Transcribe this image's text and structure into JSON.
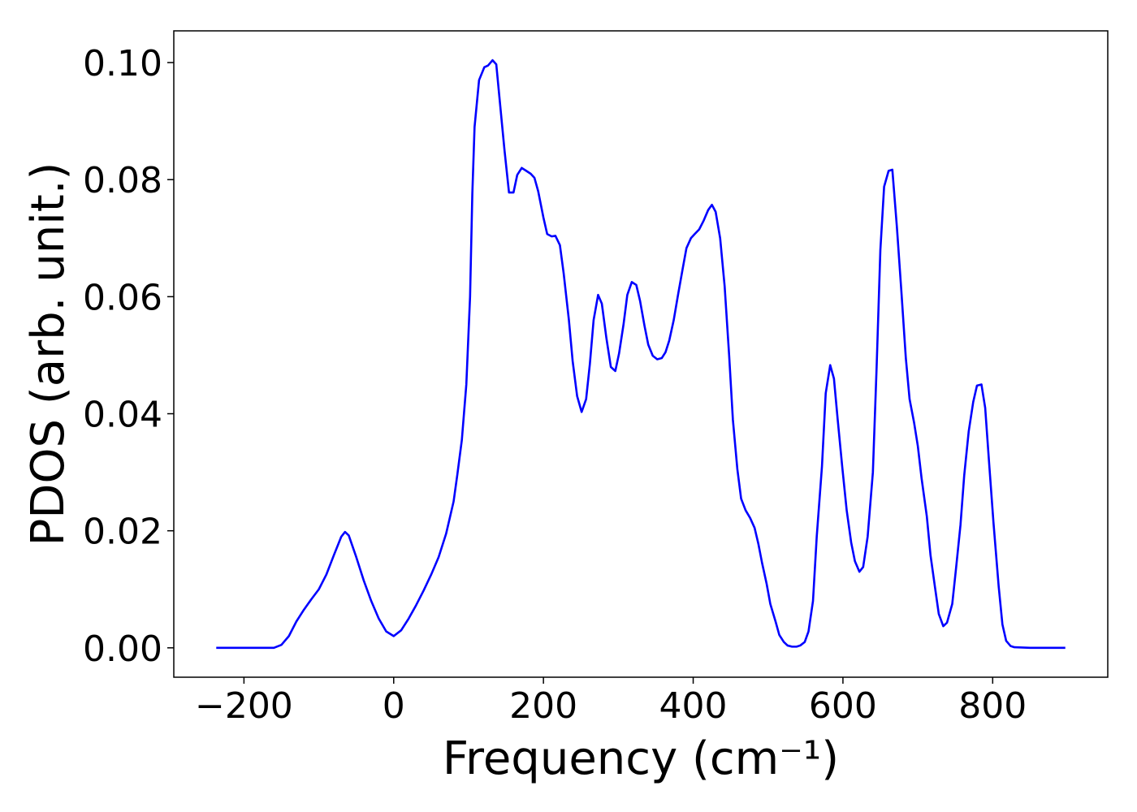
{
  "chart_data": {
    "type": "line",
    "xlabel": "Frequency (cm⁻¹)",
    "ylabel": "PDOS (arb. unit.)",
    "xlim": [
      -293.7,
      953.7
    ],
    "ylim": [
      -0.00502,
      0.10542
    ],
    "xticks": [
      {
        "value": -200,
        "label": "−200"
      },
      0,
      200,
      400,
      600,
      800
    ],
    "yticks": [
      {
        "value": 0,
        "label": "0.00"
      },
      {
        "value": 0.02,
        "label": "0.02"
      },
      {
        "value": 0.04,
        "label": "0.04"
      },
      {
        "value": 0.06,
        "label": "0.06"
      },
      {
        "value": 0.08,
        "label": "0.08"
      },
      {
        "value": 0.1,
        "label": "0.10"
      }
    ],
    "x": [
      -237,
      -200,
      -160,
      -150,
      -140,
      -130,
      -120,
      -110,
      -100,
      -90,
      -80,
      -70,
      -65,
      -60,
      -50,
      -40,
      -30,
      -20,
      -10,
      0,
      10,
      20,
      30,
      40,
      50,
      60,
      70,
      80,
      85,
      91,
      97,
      102,
      105,
      108,
      114,
      121,
      126,
      132,
      137,
      142,
      148,
      154,
      160,
      165,
      171,
      177,
      183,
      188,
      193,
      200,
      205,
      211,
      216,
      222,
      227,
      234,
      239,
      245,
      251,
      257,
      262,
      267,
      273,
      278,
      284,
      290,
      296,
      301,
      307,
      312,
      318,
      324,
      329,
      335,
      340,
      346,
      352,
      358,
      363,
      368,
      374,
      380,
      386,
      391,
      397,
      402,
      408,
      414,
      420,
      425,
      430,
      436,
      442,
      448,
      453,
      459,
      464,
      470,
      476,
      482,
      487,
      492,
      498,
      503,
      510,
      515,
      521,
      526,
      532,
      538,
      543,
      549,
      554,
      560,
      565,
      572,
      577,
      583,
      588,
      593,
      599,
      605,
      611,
      616,
      622,
      627,
      633,
      640,
      645,
      650,
      655,
      661,
      666,
      672,
      678,
      684,
      689,
      695,
      700,
      705,
      712,
      717,
      723,
      728,
      734,
      739,
      746,
      751,
      757,
      762,
      768,
      774,
      779,
      785,
      790,
      795,
      801,
      808,
      813,
      818,
      824,
      829,
      850,
      897
    ],
    "series": [
      {
        "color": "#0000ff",
        "values": [
          0,
          0,
          0,
          0.0005,
          0.002,
          0.0045,
          0.0065,
          0.0083,
          0.01,
          0.0125,
          0.0158,
          0.019,
          0.0198,
          0.0192,
          0.0155,
          0.0115,
          0.008,
          0.005,
          0.0028,
          0.002,
          0.003,
          0.005,
          0.0073,
          0.0098,
          0.0125,
          0.0155,
          0.0195,
          0.025,
          0.0296,
          0.0355,
          0.045,
          0.06,
          0.0775,
          0.089,
          0.097,
          0.0992,
          0.0995,
          0.1004,
          0.0997,
          0.093,
          0.085,
          0.0778,
          0.0778,
          0.0808,
          0.082,
          0.0815,
          0.081,
          0.0803,
          0.078,
          0.0735,
          0.0707,
          0.0703,
          0.0704,
          0.0688,
          0.064,
          0.056,
          0.049,
          0.043,
          0.0403,
          0.0425,
          0.0485,
          0.056,
          0.0603,
          0.0588,
          0.053,
          0.048,
          0.0473,
          0.0503,
          0.0553,
          0.0603,
          0.0625,
          0.062,
          0.0593,
          0.055,
          0.0518,
          0.0499,
          0.0493,
          0.0495,
          0.0505,
          0.0525,
          0.056,
          0.0605,
          0.0648,
          0.0683,
          0.07,
          0.0707,
          0.0715,
          0.073,
          0.0748,
          0.0757,
          0.0745,
          0.07,
          0.0618,
          0.05,
          0.039,
          0.0305,
          0.0255,
          0.0235,
          0.0222,
          0.0205,
          0.0178,
          0.0145,
          0.011,
          0.0075,
          0.0045,
          0.0022,
          0.001,
          0.0004,
          0.0002,
          0.0002,
          0.0004,
          0.001,
          0.0028,
          0.008,
          0.019,
          0.031,
          0.0435,
          0.0483,
          0.046,
          0.039,
          0.031,
          0.0235,
          0.018,
          0.0148,
          0.013,
          0.0138,
          0.019,
          0.03,
          0.048,
          0.068,
          0.0788,
          0.0815,
          0.0817,
          0.072,
          0.061,
          0.0495,
          0.0425,
          0.0385,
          0.0345,
          0.029,
          0.0225,
          0.0158,
          0.0103,
          0.0058,
          0.0037,
          0.0043,
          0.0075,
          0.0135,
          0.021,
          0.0295,
          0.037,
          0.042,
          0.0448,
          0.045,
          0.041,
          0.032,
          0.0215,
          0.0105,
          0.004,
          0.0012,
          0.0003,
          0.0001,
          0,
          0
        ]
      }
    ]
  }
}
